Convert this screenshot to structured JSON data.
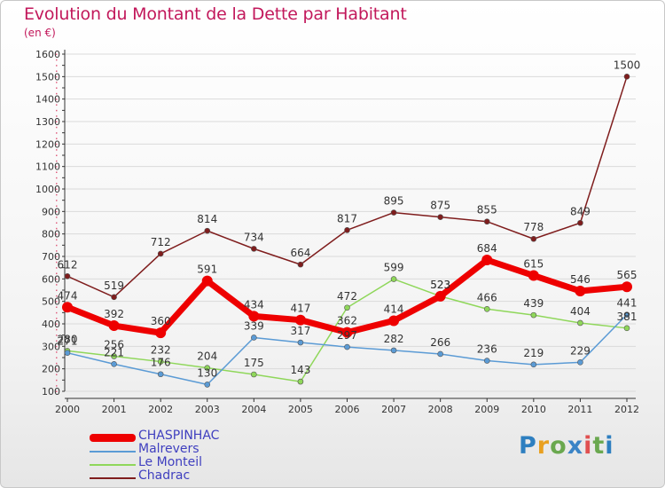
{
  "title": "Evolution du Montant de la Dette par Habitant",
  "subtitle": "(en €)",
  "brand": "Proxiti",
  "brand_colors": [
    "#2e7fc0",
    "#e9a020",
    "#6aa84f",
    "#3b84c6",
    "#e05050",
    "#6aa84f",
    "#2e7fc0"
  ],
  "chart_data": {
    "type": "line",
    "x": [
      "2000",
      "2001",
      "2002",
      "2003",
      "2004",
      "2005",
      "2006",
      "2007",
      "2008",
      "2009",
      "2010",
      "2011",
      "2012"
    ],
    "ylim": [
      100,
      1600
    ],
    "yticks": [
      100,
      200,
      300,
      400,
      500,
      600,
      700,
      800,
      900,
      1000,
      1100,
      1200,
      1300,
      1400,
      1500,
      1600
    ],
    "grid": true,
    "legend_position": "bottom-left",
    "series": [
      {
        "name": "CHASPINHAC",
        "color": "#ee0000",
        "width": 7,
        "values": [
          474,
          392,
          360,
          591,
          434,
          417,
          362,
          414,
          523,
          684,
          615,
          546,
          565
        ],
        "labels": [
          "474",
          "392",
          "360",
          "591",
          "434",
          "417",
          "362",
          "414",
          "523",
          "684",
          "615",
          "546",
          "565"
        ]
      },
      {
        "name": "Malrevers",
        "color": "#5b9bd5",
        "width": 1.5,
        "values": [
          271,
          221,
          176,
          130,
          339,
          317,
          297,
          282,
          266,
          236,
          219,
          229,
          441
        ],
        "labels": [
          "271",
          "221",
          "176",
          "130",
          "339",
          "317",
          "297",
          "282",
          "266",
          "236",
          "219",
          "229",
          "441"
        ]
      },
      {
        "name": "Le Monteil",
        "color": "#8fd75a",
        "width": 1.5,
        "values": [
          280,
          256,
          232,
          204,
          175,
          143,
          472,
          599,
          523,
          466,
          439,
          404,
          381
        ],
        "labels": [
          "280",
          "256",
          "232",
          "204",
          "175",
          "143",
          "472",
          "599",
          "523",
          "466",
          "439",
          "404",
          "381"
        ]
      },
      {
        "name": "Chadrac",
        "color": "#7f1d1d",
        "width": 1.5,
        "values": [
          612,
          519,
          712,
          814,
          734,
          664,
          817,
          895,
          875,
          855,
          778,
          849,
          1500
        ],
        "labels": [
          "612",
          "519",
          "712",
          "814",
          "734",
          "664",
          "817",
          "895",
          "875",
          "855",
          "778",
          "849",
          "1500"
        ]
      }
    ]
  }
}
